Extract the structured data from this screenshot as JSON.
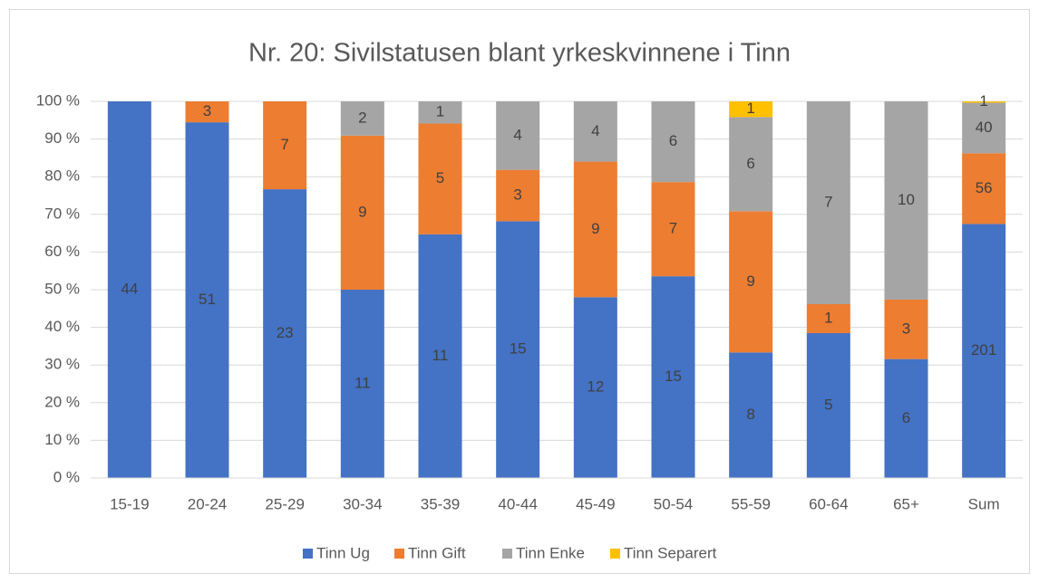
{
  "chart_data": {
    "type": "bar",
    "stacking": "percent",
    "title": "Nr. 20: Sivilstatusen blant yrkeskvinnene i Tinn",
    "categories": [
      "15-19",
      "20-24",
      "25-29",
      "30-34",
      "35-39",
      "40-44",
      "45-49",
      "50-54",
      "55-59",
      "60-64",
      "65+",
      "Sum"
    ],
    "series": [
      {
        "name": "Tinn Ug",
        "color": "#4472c4",
        "values": [
          44,
          51,
          23,
          11,
          11,
          15,
          12,
          15,
          8,
          5,
          6,
          201
        ]
      },
      {
        "name": "Tinn Gift",
        "color": "#ed7d31",
        "values": [
          0,
          3,
          7,
          9,
          5,
          3,
          9,
          7,
          9,
          1,
          3,
          56
        ]
      },
      {
        "name": "Tinn Enke",
        "color": "#a5a5a5",
        "values": [
          0,
          0,
          0,
          2,
          1,
          4,
          4,
          6,
          6,
          7,
          10,
          40
        ]
      },
      {
        "name": "Tinn Separert",
        "color": "#ffc000",
        "values": [
          0,
          0,
          0,
          0,
          0,
          0,
          0,
          0,
          1,
          0,
          0,
          1
        ]
      }
    ],
    "ylim": [
      0,
      100
    ],
    "yticks": [
      {
        "value": 0,
        "label": "0 %"
      },
      {
        "value": 10,
        "label": "10 %"
      },
      {
        "value": 20,
        "label": "20 %"
      },
      {
        "value": 30,
        "label": "30 %"
      },
      {
        "value": 40,
        "label": "40 %"
      },
      {
        "value": 50,
        "label": "50 %"
      },
      {
        "value": 60,
        "label": "60 %"
      },
      {
        "value": 70,
        "label": "70 %"
      },
      {
        "value": 80,
        "label": "80 %"
      },
      {
        "value": 90,
        "label": "90 %"
      },
      {
        "value": 100,
        "label": "100 %"
      }
    ],
    "grid": true,
    "legend": "bottom"
  }
}
